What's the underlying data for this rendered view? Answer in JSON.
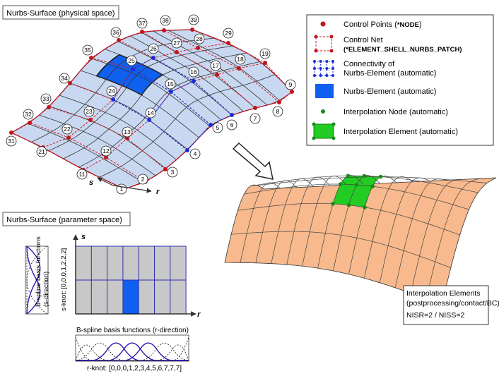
{
  "titles": {
    "physical": "Nurbs-Surface (physical space)",
    "parameter": "Nurbs-Surface (parameter space)"
  },
  "legend": {
    "control_points": "Control Points (",
    "control_points_kw": "*NODE",
    "control_points_end": ")",
    "control_net": "Control Net",
    "control_net_kw": "(*ELEMENT_SHELL_NURBS_PATCH)",
    "connectivity_1": "Connectivity of",
    "connectivity_2": "Nurbs-Element (automatic)",
    "nurbs_element": "Nurbs-Element (automatic)",
    "interp_node": "Interpolation Node (automatic)",
    "interp_element": "Interpolation Element (automatic)"
  },
  "axes": {
    "s": "s",
    "r": "r"
  },
  "param": {
    "s_knot": "s-knot: [0,0,0,1,2,2,2]",
    "s_basis_1": "B-spline basis functions",
    "s_basis_2": "(s-direction)",
    "r_basis": "B-spline basis functions (r-direction)",
    "r_knot": "r-knot: [0,0,0,1,2,3,4,5,6,7,7,7]"
  },
  "interp_box": {
    "line1": "Interpolation Elements",
    "line2": "(postprocessing/contact/BC)",
    "line3": "NISR=2 / NISS=2"
  },
  "node_labels": [
    "1",
    "2",
    "3",
    "4",
    "5",
    "6",
    "7",
    "8",
    "9",
    "11",
    "12",
    "13",
    "14",
    "15",
    "16",
    "17",
    "18",
    "19",
    "21",
    "22",
    "23",
    "24",
    "25",
    "26",
    "27",
    "28",
    "29",
    "31",
    "32",
    "33",
    "34",
    "35",
    "36",
    "37",
    "38",
    "39"
  ],
  "colors": {
    "surface": "#c7d8f0",
    "control_point": "#c0161b",
    "control_net": "#e0141b",
    "connectivity": "#1b2ed8",
    "nurbs_element": "#1060f0",
    "interp_node": "#1a8a1a",
    "interp_element": "#22cc22",
    "orange_surface": "#f7b98d",
    "param_cell": "#c8c8c8",
    "param_line": "#3030b0"
  }
}
